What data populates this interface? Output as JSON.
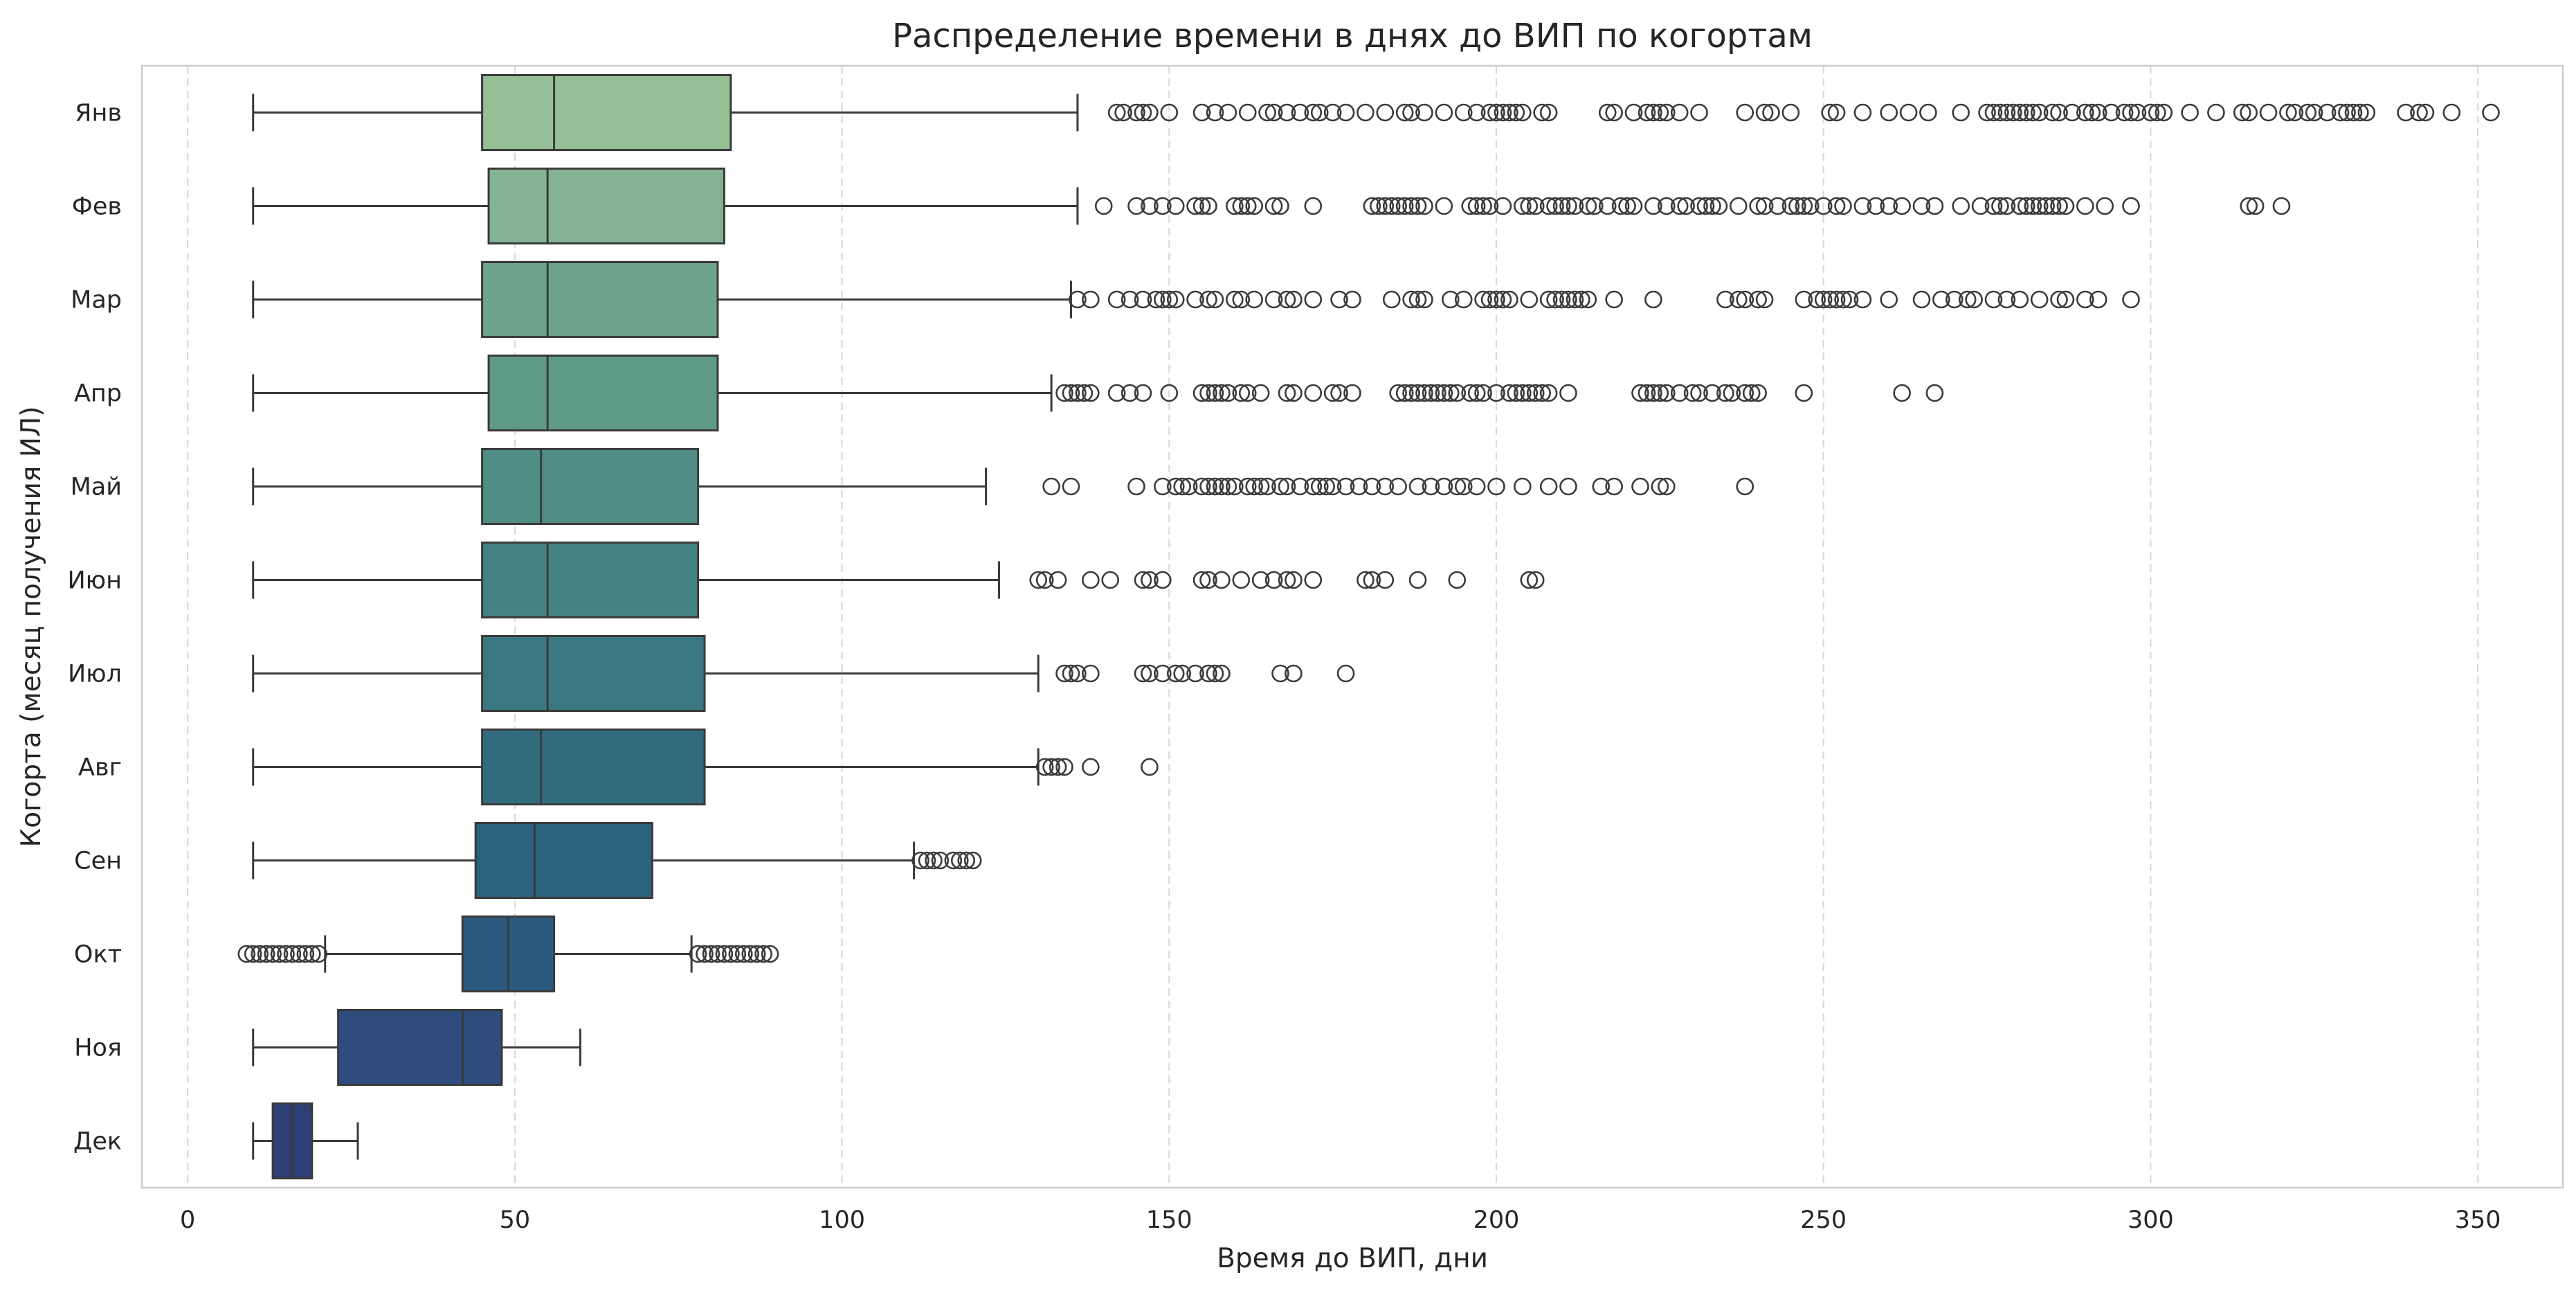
{
  "chart_data": {
    "type": "boxplot",
    "orientation": "horizontal",
    "title": "Распределение времени в днях до ВИП по когортам",
    "xlabel": "Время до ВИП, дни",
    "ylabel": "Когорта (месяц получения ИЛ)",
    "xlim": [
      -7,
      363
    ],
    "xticks": [
      0,
      50,
      100,
      150,
      200,
      250,
      300,
      350
    ],
    "grid": "x, dashed",
    "palette": "crest",
    "categories": [
      "Янв",
      "Фев",
      "Мар",
      "Апр",
      "Май",
      "Июн",
      "Июл",
      "Авг",
      "Сен",
      "Окт",
      "Ноя",
      "Дек"
    ],
    "boxes": [
      {
        "cohort": "Янв",
        "color": "#96bf96",
        "whisker_low": 10,
        "q1": 45,
        "median": 56,
        "q3": 83,
        "whisker_high": 136,
        "outliers": [
          142,
          143,
          145,
          146,
          147,
          150,
          155,
          157,
          159,
          162,
          165,
          166,
          168,
          170,
          172,
          173,
          175,
          177,
          180,
          183,
          186,
          187,
          189,
          192,
          195,
          197,
          199,
          200,
          201,
          202,
          203,
          204,
          207,
          208,
          217,
          218,
          221,
          223,
          224,
          225,
          226,
          228,
          231,
          238,
          241,
          242,
          245,
          251,
          252,
          256,
          260,
          263,
          266,
          271,
          275,
          276,
          277,
          278,
          279,
          280,
          281,
          282,
          283,
          285,
          286,
          288,
          290,
          291,
          292,
          294,
          296,
          297,
          298,
          300,
          301,
          302,
          306,
          310,
          314,
          315,
          318,
          321,
          322,
          324,
          325,
          327,
          329,
          330,
          331,
          332,
          333,
          339,
          341,
          342,
          346,
          352
        ]
      },
      {
        "cohort": "Фев",
        "color": "#83b394",
        "whisker_low": 10,
        "q1": 46,
        "median": 55,
        "q3": 82,
        "whisker_high": 136,
        "outliers": [
          140,
          145,
          147,
          149,
          151,
          154,
          155,
          156,
          160,
          161,
          162,
          163,
          166,
          167,
          172,
          181,
          182,
          183,
          184,
          185,
          186,
          187,
          188,
          189,
          192,
          196,
          197,
          198,
          199,
          201,
          204,
          205,
          206,
          208,
          209,
          210,
          211,
          212,
          214,
          215,
          217,
          219,
          220,
          221,
          224,
          226,
          228,
          229,
          231,
          232,
          233,
          234,
          237,
          240,
          241,
          243,
          245,
          246,
          247,
          248,
          250,
          252,
          253,
          256,
          258,
          260,
          262,
          265,
          267,
          271,
          274,
          276,
          277,
          278,
          280,
          281,
          282,
          283,
          284,
          285,
          286,
          287,
          290,
          293,
          297,
          315,
          316,
          320
        ]
      },
      {
        "cohort": "Мар",
        "color": "#6ea48b",
        "whisker_low": 10,
        "q1": 45,
        "median": 55,
        "q3": 81,
        "whisker_high": 135,
        "outliers": [
          136,
          138,
          142,
          144,
          146,
          148,
          149,
          150,
          151,
          154,
          156,
          157,
          160,
          161,
          163,
          166,
          168,
          169,
          172,
          176,
          178,
          184,
          187,
          188,
          189,
          193,
          195,
          198,
          199,
          200,
          201,
          202,
          205,
          208,
          209,
          210,
          211,
          212,
          213,
          214,
          218,
          224,
          235,
          237,
          238,
          240,
          241,
          247,
          249,
          250,
          251,
          252,
          253,
          254,
          256,
          260,
          265,
          268,
          270,
          272,
          273,
          276,
          278,
          280,
          283,
          286,
          287,
          290,
          292,
          297
        ]
      },
      {
        "cohort": "Апр",
        "color": "#5e9a88",
        "whisker_low": 10,
        "q1": 46,
        "median": 55,
        "q3": 81,
        "whisker_high": 132,
        "outliers": [
          134,
          135,
          136,
          137,
          138,
          142,
          144,
          146,
          150,
          155,
          156,
          157,
          158,
          159,
          161,
          162,
          164,
          168,
          169,
          172,
          175,
          176,
          178,
          185,
          186,
          187,
          188,
          189,
          190,
          191,
          192,
          193,
          194,
          196,
          197,
          198,
          200,
          202,
          203,
          204,
          205,
          206,
          207,
          208,
          211,
          222,
          223,
          224,
          225,
          226,
          228,
          230,
          231,
          233,
          235,
          236,
          238,
          239,
          240,
          247,
          262,
          267
        ]
      },
      {
        "cohort": "Май",
        "color": "#4f8d85",
        "whisker_low": 10,
        "q1": 45,
        "median": 54,
        "q3": 78,
        "whisker_high": 122,
        "outliers": [
          132,
          135,
          145,
          149,
          151,
          152,
          153,
          155,
          156,
          157,
          158,
          159,
          160,
          162,
          163,
          164,
          165,
          167,
          168,
          170,
          172,
          173,
          174,
          175,
          177,
          179,
          181,
          183,
          185,
          188,
          190,
          192,
          194,
          195,
          197,
          200,
          204,
          208,
          211,
          216,
          218,
          222,
          225,
          226,
          238
        ]
      },
      {
        "cohort": "Июн",
        "color": "#448283",
        "whisker_low": 10,
        "q1": 45,
        "median": 55,
        "q3": 78,
        "whisker_high": 124,
        "outliers": [
          130,
          131,
          133,
          138,
          141,
          146,
          147,
          149,
          155,
          156,
          158,
          161,
          164,
          166,
          168,
          169,
          172,
          180,
          181,
          183,
          188,
          194,
          205,
          206
        ]
      },
      {
        "cohort": "Июл",
        "color": "#3a7881",
        "whisker_low": 10,
        "q1": 45,
        "median": 55,
        "q3": 79,
        "whisker_high": 130,
        "outliers": [
          134,
          135,
          136,
          138,
          146,
          147,
          149,
          151,
          152,
          154,
          156,
          157,
          158,
          167,
          169,
          177
        ]
      },
      {
        "cohort": "Авг",
        "color": "#316c7e",
        "whisker_low": 10,
        "q1": 45,
        "median": 54,
        "q3": 79,
        "whisker_high": 130,
        "outliers": [
          131,
          132,
          133,
          134,
          138,
          147
        ]
      },
      {
        "cohort": "Сен",
        "color": "#2b637d",
        "whisker_low": 10,
        "q1": 44,
        "median": 53,
        "q3": 71,
        "whisker_high": 111,
        "outliers": [
          112,
          113,
          114,
          115,
          117,
          118,
          119,
          120
        ]
      },
      {
        "cohort": "Окт",
        "color": "#2b5a7e",
        "whisker_low": 21,
        "q1": 42,
        "median": 49,
        "q3": 56,
        "whisker_high": 77,
        "outliers": [
          9,
          10,
          11,
          12,
          13,
          14,
          15,
          16,
          17,
          18,
          19,
          20,
          78,
          79,
          80,
          81,
          82,
          83,
          84,
          85,
          86,
          87,
          88,
          89
        ]
      },
      {
        "cohort": "Ноя",
        "color": "#2e4c7d",
        "whisker_low": 10,
        "q1": 23,
        "median": 42,
        "q3": 48,
        "whisker_high": 60,
        "outliers": []
      },
      {
        "cohort": "Дек",
        "color": "#2e3f76",
        "whisker_low": 10,
        "q1": 13,
        "median": 16,
        "q3": 19,
        "whisker_high": 26,
        "outliers": []
      }
    ]
  }
}
